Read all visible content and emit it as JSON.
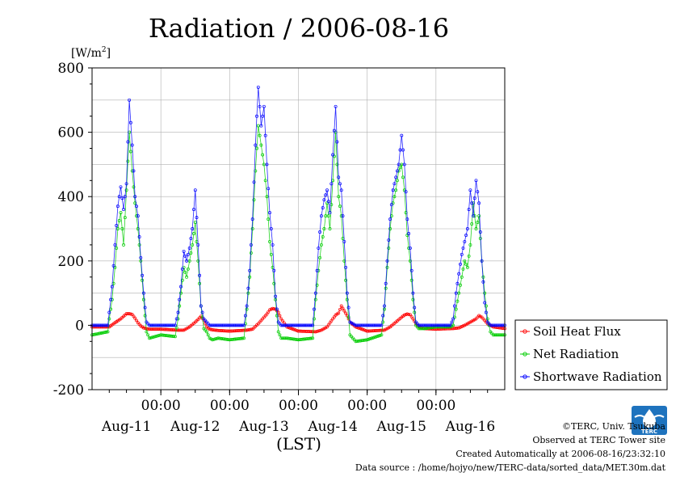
{
  "chart_data": {
    "type": "line",
    "title": "Radiation / 2006-08-16",
    "y_unit_label": "[W/m",
    "y_unit_sup": "2",
    "y_unit_close": "]",
    "xlabel": "(LST)",
    "ylim": [
      -200,
      800
    ],
    "y_ticks": [
      -200,
      0,
      200,
      400,
      600,
      800
    ],
    "x_range_hours": [
      0,
      144
    ],
    "x_ticks_hours": [
      24,
      48,
      72,
      96,
      120
    ],
    "x_tick_label": "00:00",
    "day_labels": [
      "Aug-11",
      "Aug-12",
      "Aug-13",
      "Aug-14",
      "Aug-15",
      "Aug-16"
    ],
    "grid": true,
    "legend_position": "right",
    "series": [
      {
        "name": "Soil Heat Flux",
        "color": "#ff0000",
        "x": [
          0,
          6,
          8,
          10,
          11,
          12,
          13,
          14,
          15,
          16,
          17,
          18,
          20,
          24,
          30,
          32,
          34,
          36,
          37,
          38,
          39,
          40,
          41,
          42,
          44,
          48,
          54,
          56,
          58,
          60,
          61,
          62,
          63,
          64,
          65,
          66,
          68,
          72,
          78,
          80,
          82,
          84,
          85,
          86,
          87,
          88,
          89,
          90,
          92,
          96,
          102,
          104,
          106,
          108,
          109,
          110,
          111,
          112,
          113,
          114,
          116,
          120,
          126,
          128,
          130,
          132,
          133,
          134,
          135,
          136,
          137,
          138,
          140,
          144
        ],
        "values": [
          -5,
          -5,
          8,
          20,
          28,
          36,
          36,
          34,
          22,
          8,
          -2,
          -8,
          -12,
          -12,
          -15,
          -15,
          -5,
          10,
          18,
          28,
          15,
          -5,
          -12,
          -14,
          -16,
          -18,
          -15,
          -12,
          5,
          25,
          35,
          48,
          52,
          50,
          40,
          20,
          -5,
          -18,
          -20,
          -15,
          -5,
          20,
          32,
          38,
          60,
          45,
          30,
          10,
          -5,
          -18,
          -15,
          -5,
          10,
          25,
          32,
          35,
          33,
          20,
          5,
          -5,
          -10,
          -12,
          -10,
          -8,
          0,
          10,
          15,
          20,
          30,
          25,
          15,
          5,
          -5,
          -10
        ]
      },
      {
        "name": "Net Radiation",
        "color": "#00cc00",
        "x": [
          0,
          5.5,
          6,
          7,
          8,
          9,
          10,
          11,
          12,
          13,
          14,
          15,
          16,
          17,
          18,
          19,
          20,
          24,
          29,
          30,
          31,
          32,
          33,
          34,
          35,
          36,
          37,
          38,
          39,
          40,
          41,
          42,
          44,
          48,
          53,
          54,
          55,
          56,
          57,
          58,
          59,
          60,
          61,
          62,
          63,
          64,
          65,
          66,
          68,
          72,
          77,
          78,
          79,
          80,
          81,
          82,
          83,
          84,
          85,
          86,
          87,
          88,
          89,
          90,
          92,
          96,
          101,
          102,
          103,
          104,
          105,
          106,
          107,
          108,
          109,
          110,
          111,
          112,
          113,
          114,
          116,
          120,
          125,
          126,
          127,
          128,
          129,
          130,
          131,
          132,
          133,
          134,
          135,
          136,
          137,
          138,
          139,
          140,
          144
        ],
        "values": [
          -30,
          -20,
          20,
          80,
          180,
          300,
          350,
          250,
          420,
          600,
          480,
          380,
          300,
          200,
          80,
          -20,
          -40,
          -30,
          -35,
          20,
          100,
          180,
          150,
          200,
          250,
          320,
          200,
          60,
          -10,
          -20,
          -40,
          -45,
          -40,
          -45,
          -40,
          50,
          150,
          300,
          480,
          620,
          560,
          500,
          400,
          260,
          180,
          80,
          -20,
          -40,
          -40,
          -45,
          -40,
          80,
          170,
          250,
          300,
          380,
          300,
          450,
          600,
          400,
          340,
          200,
          80,
          -30,
          -50,
          -45,
          -30,
          50,
          180,
          300,
          380,
          420,
          480,
          500,
          420,
          280,
          200,
          80,
          0,
          -10,
          -10,
          -5,
          -5,
          0,
          50,
          100,
          150,
          200,
          180,
          250,
          380,
          300,
          340,
          200,
          100,
          20,
          -20,
          -30,
          -30
        ]
      },
      {
        "name": "Shortwave Radiation",
        "color": "#0000ff",
        "x": [
          0,
          5.5,
          6,
          7,
          8,
          9,
          10,
          11,
          12,
          13,
          14,
          15,
          16,
          17,
          18,
          19,
          20,
          24,
          29,
          30,
          31,
          32,
          33,
          34,
          35,
          36,
          37,
          38,
          39,
          40,
          41,
          42,
          44,
          48,
          53,
          54,
          55,
          56,
          57,
          58,
          59,
          60,
          61,
          62,
          63,
          64,
          65,
          66,
          68,
          72,
          77,
          78,
          79,
          80,
          81,
          82,
          83,
          84,
          85,
          86,
          87,
          88,
          89,
          90,
          92,
          96,
          101,
          102,
          103,
          104,
          105,
          106,
          107,
          108,
          109,
          110,
          111,
          112,
          113,
          114,
          116,
          120,
          125,
          126,
          127,
          128,
          129,
          130,
          131,
          132,
          133,
          134,
          135,
          136,
          137,
          138,
          139,
          140,
          144
        ],
        "values": [
          0,
          0,
          40,
          120,
          250,
          370,
          430,
          360,
          440,
          700,
          560,
          400,
          340,
          210,
          100,
          10,
          0,
          0,
          0,
          40,
          120,
          230,
          200,
          240,
          300,
          420,
          250,
          60,
          20,
          10,
          0,
          0,
          0,
          0,
          0,
          60,
          170,
          330,
          560,
          740,
          620,
          680,
          500,
          350,
          250,
          90,
          10,
          0,
          0,
          0,
          0,
          100,
          240,
          340,
          390,
          420,
          350,
          530,
          680,
          460,
          420,
          260,
          100,
          10,
          0,
          0,
          0,
          60,
          200,
          330,
          420,
          460,
          500,
          590,
          500,
          330,
          240,
          100,
          10,
          0,
          0,
          0,
          0,
          20,
          100,
          160,
          220,
          260,
          300,
          420,
          340,
          450,
          380,
          200,
          70,
          10,
          0,
          0,
          0
        ]
      }
    ]
  },
  "footer": {
    "copyright": "©TERC, Univ. Tsukuba",
    "observed": "Observed at TERC Tower site",
    "created": "Created Automatically at 2006-08-16/23:32:10",
    "source": "Data source : /home/hojyo/new/TERC-data/sorted_data/MET.30m.dat"
  },
  "logo": {
    "text": "TERC",
    "color": "#1e73be"
  }
}
